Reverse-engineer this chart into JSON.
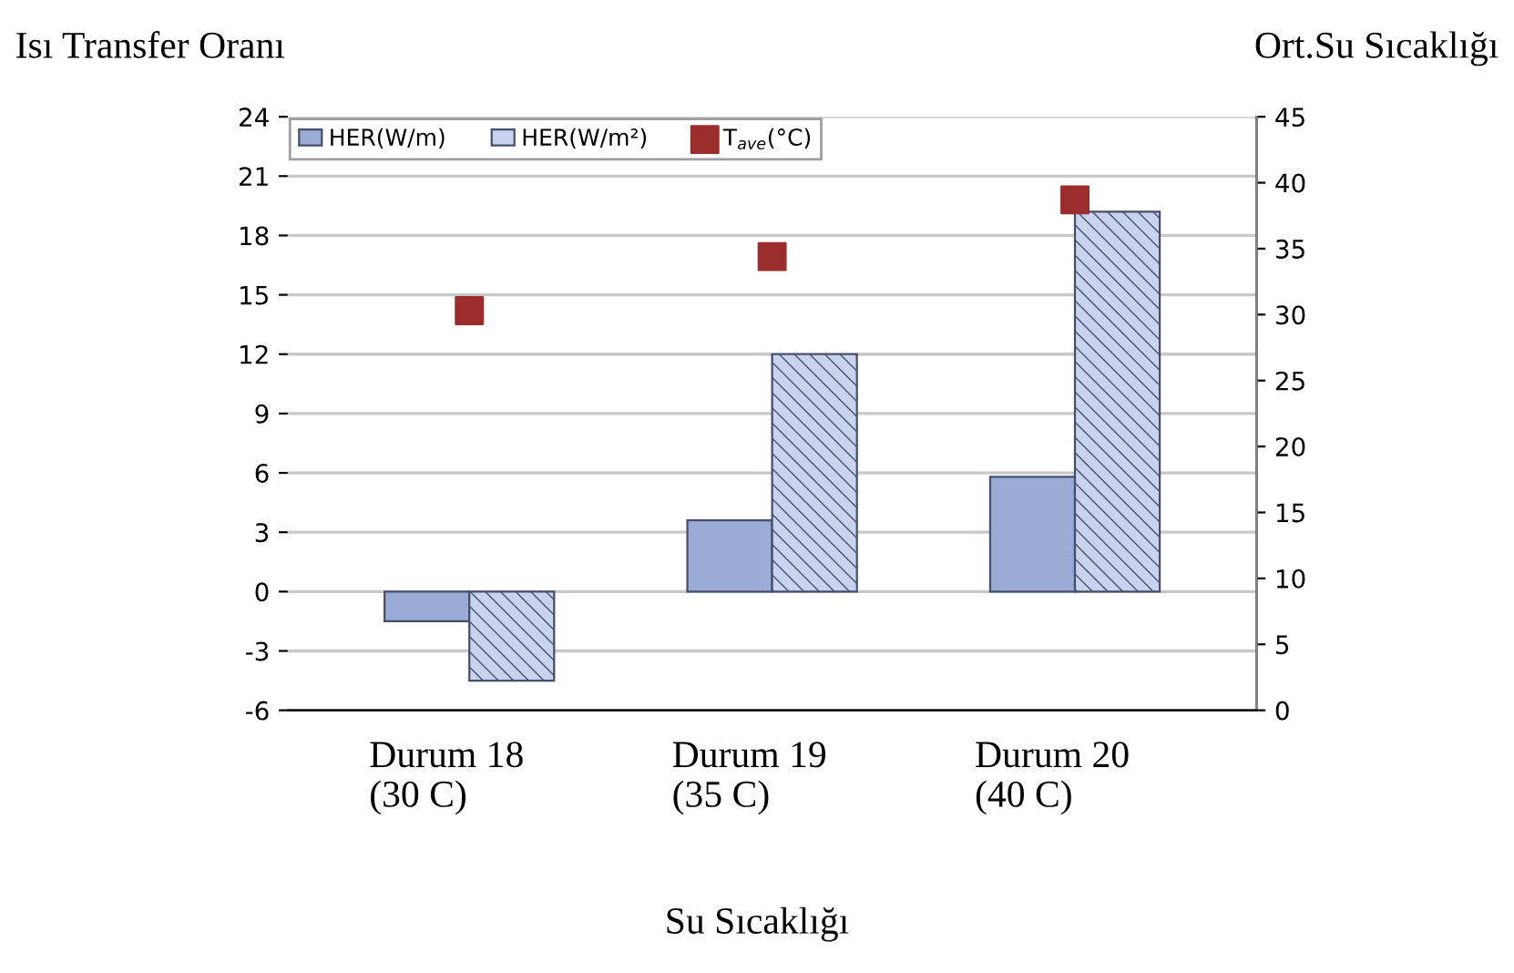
{
  "chart_data": {
    "type": "bar",
    "ylabel": "Isı Transfer Oranı",
    "y2label": "Ort.Su Sıcaklığı",
    "xlabel": "Su Sıcaklığı",
    "categories": [
      "Durum 18\n(30 C)",
      "Durum 19\n(35 C)",
      "Durum 20\n(40 C)"
    ],
    "series": [
      {
        "name": "HER(W/m)",
        "color": "#9aabd6",
        "values": [
          -1.5,
          3.6,
          5.8
        ]
      },
      {
        "name": "HER(W/m²)",
        "color": "#c9d3ee",
        "values": [
          -4.5,
          12,
          19.2
        ]
      },
      {
        "name": "T$_{ave}$(°C)",
        "type": "scatter",
        "axis": "y2",
        "color": "#9b2d2d",
        "values": [
          30.3,
          34.4,
          38.7
        ]
      }
    ],
    "ylim": [
      -6,
      24
    ],
    "yticks": [
      -6,
      -3,
      0,
      3,
      6,
      9,
      12,
      15,
      18,
      21,
      24
    ],
    "y2lim": [
      0,
      45
    ],
    "y2ticks": [
      0,
      5,
      10,
      15,
      20,
      25,
      30,
      35,
      40,
      45
    ],
    "grid": "y",
    "legend": "top left",
    "marker": "square"
  }
}
